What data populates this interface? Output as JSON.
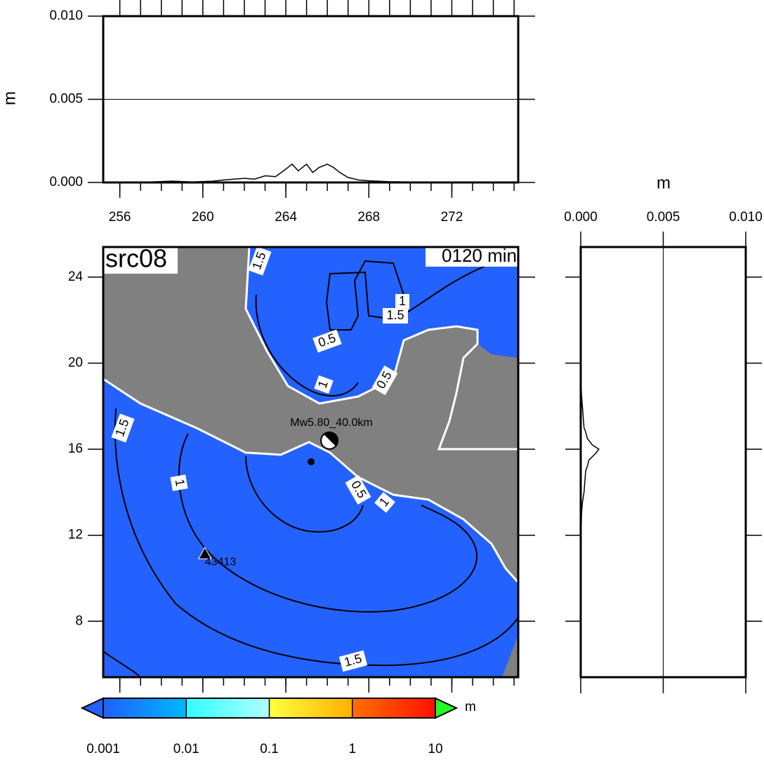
{
  "chart_data": [
    {
      "type": "line",
      "ylabel": "m",
      "xlim": [
        255.2,
        275.2
      ],
      "ylim": [
        0,
        0.01
      ],
      "xticks": [
        256,
        260,
        264,
        268,
        272
      ],
      "yticks": [
        {
          "value": 0,
          "label": "0.000"
        },
        {
          "value": 0.005,
          "label": "0.005"
        },
        {
          "value": 0.01,
          "label": "0.010"
        }
      ],
      "grid": true,
      "color": "#000000",
      "x": [
        255.5,
        256.5,
        257.5,
        258.5,
        259.5,
        260.5,
        261,
        261.5,
        262,
        262.5,
        263,
        263.5,
        264,
        264.3,
        264.6,
        265,
        265.3,
        265.6,
        266,
        266.3,
        266.6,
        267,
        267.5,
        268,
        269,
        270,
        271,
        272,
        273,
        274,
        275
      ],
      "values": [
        0,
        2e-05,
        3e-05,
        8e-05,
        3e-05,
        8e-05,
        0.00015,
        0.0002,
        0.00025,
        0.0002,
        0.0004,
        0.00035,
        0.0008,
        0.0011,
        0.0007,
        0.0011,
        0.0006,
        0.0009,
        0.0011,
        0.0009,
        0.0006,
        0.0003,
        0.00015,
        0.0001,
        5e-05,
        3e-05,
        2e-05,
        1e-05,
        1e-05,
        0,
        0
      ]
    },
    {
      "type": "map",
      "title": "src08",
      "time_label": "0120 min",
      "source_label": "Mw5.80_40.0km",
      "xlim": [
        255.2,
        275.2
      ],
      "ylim": [
        5.4,
        25.4
      ],
      "yticks": [
        8,
        12,
        16,
        20,
        24
      ],
      "source_lon": 266.1,
      "source_lat": 16.4,
      "station_name": "43413",
      "station_lon": 260.1,
      "station_lat": 11.1,
      "ocean_color": "#2462ff",
      "land_color": "#808080",
      "contour_labels": [
        "1.5",
        "1",
        "0.5",
        "1",
        "1.5",
        "0.5",
        "1",
        "0.5",
        "1",
        "1.5",
        "1.5"
      ]
    },
    {
      "type": "line",
      "orientation": "vertical",
      "xlabel": "m",
      "xlim": [
        0,
        0.01
      ],
      "ylim": [
        5.4,
        25.4
      ],
      "xticks": [
        {
          "value": 0,
          "label": "0.000"
        },
        {
          "value": 0.005,
          "label": "0.005"
        },
        {
          "value": 0.01,
          "label": "0.010"
        }
      ],
      "grid": true,
      "color": "#000000",
      "y": [
        25.3,
        24,
        22,
        20,
        19,
        18.5,
        18,
        17.5,
        17,
        16.8,
        16.5,
        16.2,
        16,
        15.8,
        15.5,
        15.2,
        15,
        14.5,
        14,
        13.5,
        13,
        12,
        10,
        8,
        6,
        5.5
      ],
      "values": [
        0,
        0,
        0,
        0,
        2e-05,
        5e-05,
        0.0001,
        0.00015,
        0.0002,
        0.0003,
        0.0004,
        0.0007,
        0.0011,
        0.0009,
        0.0005,
        0.0004,
        0.0003,
        0.00025,
        0.0002,
        0.0001,
        5e-05,
        2e-05,
        0,
        0,
        0,
        0
      ]
    },
    {
      "type": "colorbar",
      "label": "m",
      "log": true,
      "xlim": [
        0.001,
        10
      ],
      "xticks": [
        0.001,
        0.01,
        0.1,
        1,
        10
      ],
      "colors": [
        "#2060ff",
        "#00b8ff",
        "#30ffff",
        "#b0ffff",
        "#ffff40",
        "#ffb000",
        "#ff7000",
        "#ff1000"
      ],
      "under_color": "#2462ff",
      "over_color": "#20ff20"
    }
  ]
}
